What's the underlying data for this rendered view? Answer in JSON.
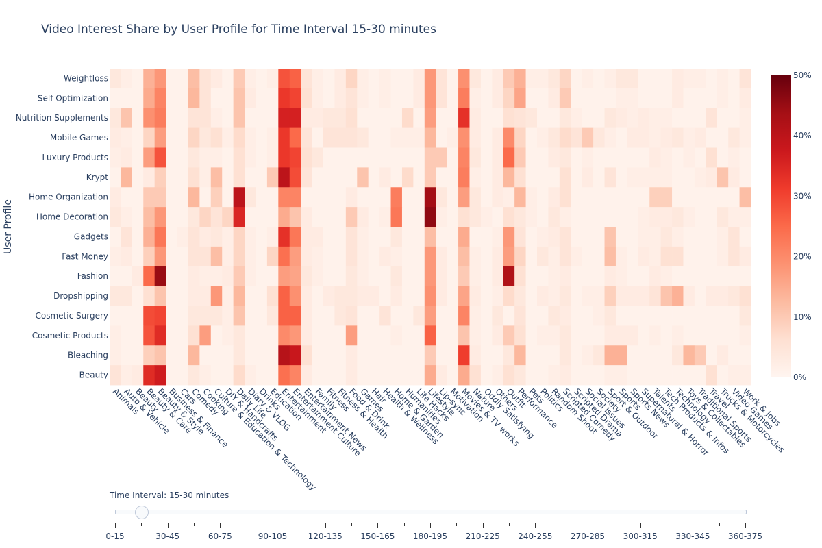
{
  "chart_data": {
    "type": "heatmap",
    "title": "Video Interest Share by User Profile for Time Interval 15-30 minutes",
    "xlabel": "",
    "ylabel": "User Profile",
    "colorscale": "Reds",
    "zrange": [
      0,
      50
    ],
    "colorbar": {
      "ticks": [
        "0%",
        "10%",
        "20%",
        "30%",
        "40%",
        "50%"
      ],
      "tickvals": [
        0,
        10,
        20,
        30,
        40,
        50
      ]
    },
    "x": [
      "Animals",
      "Auto & Vehicle",
      "Beauty",
      "Beauty & Care",
      "Beauty & Style",
      "Business & Finance",
      "Cars",
      "Comedy",
      "Cooking",
      "Culture & Education & Technology",
      "DIY & Handcrafts",
      "Daily Life",
      "Diary & VLOG",
      "Drinks",
      "Education",
      "Entertainment",
      "Entertainment Culture",
      "Entertainment News",
      "Family",
      "Fitness",
      "Fitness & Health",
      "Food & Drink",
      "Games",
      "Hair",
      "Health & Wellness",
      "Home & Garden",
      "Humanities",
      "Life Hacks",
      "Lifestyle",
      "Lip-sync",
      "Motivation",
      "Movies & TV works",
      "Nature",
      "Oddly Satisfying",
      "Others",
      "Outfit",
      "Performance",
      "Pets",
      "Politics",
      "Random Shoot",
      "Scripted Comedy",
      "Scripted Drama",
      "Social Issues",
      "Society",
      "Sport & Outdoor",
      "Sports",
      "Sports News",
      "Supernatural & Horror",
      "Talents",
      "Tech Products & Infos",
      "Technology",
      "Toys & Collectables",
      "Traditional Sports",
      "Travel",
      "Trucks & Motorcycles",
      "Video Games",
      "Work & Jobs"
    ],
    "y": [
      "Weightloss",
      "Self Optimization",
      "Nutrition Supplements",
      "Mobile Games",
      "Luxury Products",
      "Krypt",
      "Home Organization",
      "Home Decoration",
      "Gadgets",
      "Fast Money",
      "Fashion",
      "Dropshipping",
      "Cosmetic Surgery",
      "Cosmetic Products",
      "Bleaching",
      "Beauty"
    ],
    "z": [
      [
        4,
        2,
        1,
        14,
        18,
        1,
        1,
        12,
        5,
        3,
        1,
        10,
        2,
        1,
        2,
        28,
        26,
        5,
        2,
        1,
        3,
        8,
        2,
        1,
        2,
        1,
        1,
        3,
        18,
        5,
        1,
        19,
        4,
        1,
        3,
        10,
        14,
        2,
        2,
        4,
        8,
        1,
        2,
        1,
        2,
        4,
        4,
        1,
        1,
        1,
        3,
        2,
        2,
        1,
        2,
        1,
        5
      ],
      [
        1,
        1,
        1,
        15,
        21,
        1,
        1,
        13,
        5,
        1,
        1,
        11,
        3,
        1,
        1,
        32,
        30,
        6,
        2,
        1,
        3,
        5,
        2,
        1,
        2,
        1,
        1,
        3,
        18,
        5,
        1,
        22,
        2,
        1,
        3,
        8,
        16,
        1,
        1,
        3,
        10,
        1,
        1,
        1,
        1,
        2,
        2,
        1,
        1,
        1,
        3,
        1,
        1,
        1,
        2,
        1,
        3
      ],
      [
        4,
        11,
        1,
        19,
        22,
        1,
        1,
        5,
        5,
        2,
        1,
        11,
        1,
        1,
        1,
        36,
        36,
        3,
        3,
        4,
        4,
        6,
        1,
        1,
        1,
        1,
        7,
        1,
        17,
        1,
        1,
        33,
        3,
        1,
        1,
        6,
        5,
        4,
        1,
        1,
        4,
        2,
        1,
        1,
        4,
        3,
        2,
        3,
        2,
        2,
        1,
        1,
        1,
        5,
        1,
        1,
        2
      ],
      [
        3,
        2,
        1,
        8,
        17,
        1,
        1,
        8,
        4,
        6,
        2,
        7,
        2,
        1,
        2,
        32,
        25,
        5,
        1,
        5,
        5,
        5,
        4,
        1,
        1,
        2,
        2,
        2,
        13,
        1,
        2,
        19,
        3,
        1,
        3,
        20,
        8,
        1,
        2,
        4,
        7,
        5,
        10,
        4,
        2,
        1,
        3,
        3,
        2,
        3,
        4,
        2,
        3,
        1,
        1,
        4,
        2
      ],
      [
        2,
        3,
        1,
        17,
        28,
        1,
        1,
        4,
        2,
        2,
        1,
        6,
        2,
        1,
        2,
        32,
        30,
        6,
        4,
        1,
        1,
        1,
        1,
        1,
        1,
        1,
        1,
        1,
        10,
        10,
        1,
        21,
        4,
        1,
        3,
        25,
        10,
        1,
        1,
        3,
        4,
        1,
        2,
        1,
        1,
        1,
        1,
        1,
        3,
        2,
        1,
        2,
        1,
        6,
        1,
        2,
        1
      ],
      [
        1,
        13,
        1,
        3,
        9,
        1,
        1,
        6,
        2,
        12,
        1,
        6,
        1,
        1,
        10,
        40,
        29,
        5,
        1,
        1,
        1,
        1,
        11,
        1,
        3,
        1,
        7,
        1,
        10,
        1,
        1,
        22,
        2,
        1,
        3,
        13,
        6,
        1,
        1,
        1,
        6,
        1,
        3,
        1,
        5,
        1,
        2,
        2,
        2,
        2,
        1,
        1,
        2,
        3,
        11,
        3,
        1
      ],
      [
        3,
        1,
        1,
        10,
        10,
        1,
        1,
        13,
        1,
        9,
        1,
        40,
        4,
        1,
        1,
        21,
        21,
        1,
        1,
        1,
        1,
        3,
        1,
        1,
        1,
        22,
        1,
        1,
        44,
        4,
        1,
        17,
        4,
        1,
        3,
        2,
        13,
        2,
        1,
        3,
        6,
        1,
        1,
        1,
        1,
        1,
        1,
        1,
        9,
        9,
        1,
        1,
        1,
        1,
        1,
        1,
        12
      ],
      [
        4,
        2,
        1,
        12,
        18,
        1,
        1,
        4,
        8,
        5,
        8,
        35,
        1,
        1,
        1,
        15,
        11,
        3,
        1,
        1,
        1,
        10,
        3,
        1,
        2,
        23,
        1,
        1,
        46,
        2,
        1,
        6,
        4,
        2,
        1,
        6,
        4,
        2,
        1,
        4,
        2,
        1,
        1,
        1,
        1,
        1,
        1,
        2,
        3,
        3,
        4,
        2,
        1,
        1,
        4,
        2,
        2
      ],
      [
        1,
        5,
        1,
        14,
        23,
        1,
        2,
        5,
        3,
        4,
        2,
        8,
        2,
        1,
        2,
        33,
        23,
        3,
        3,
        1,
        1,
        5,
        2,
        1,
        1,
        4,
        1,
        1,
        12,
        1,
        1,
        15,
        1,
        1,
        2,
        18,
        5,
        1,
        2,
        3,
        5,
        1,
        1,
        1,
        11,
        1,
        1,
        2,
        2,
        4,
        2,
        1,
        1,
        1,
        2,
        5,
        1
      ],
      [
        2,
        3,
        1,
        9,
        18,
        1,
        1,
        5,
        5,
        12,
        2,
        8,
        2,
        1,
        8,
        24,
        17,
        3,
        2,
        1,
        1,
        5,
        2,
        1,
        3,
        2,
        1,
        1,
        18,
        3,
        1,
        12,
        2,
        1,
        3,
        17,
        8,
        1,
        4,
        2,
        5,
        2,
        1,
        1,
        12,
        2,
        1,
        3,
        2,
        6,
        6,
        1,
        1,
        1,
        2,
        5,
        3
      ],
      [
        1,
        1,
        3,
        25,
        45,
        1,
        1,
        3,
        2,
        2,
        3,
        10,
        2,
        1,
        1,
        17,
        16,
        4,
        2,
        1,
        1,
        4,
        2,
        1,
        1,
        4,
        1,
        1,
        18,
        3,
        1,
        10,
        2,
        1,
        3,
        42,
        6,
        1,
        1,
        2,
        3,
        1,
        1,
        1,
        3,
        2,
        1,
        1,
        3,
        2,
        1,
        1,
        1,
        1,
        1,
        1,
        1
      ],
      [
        4,
        4,
        1,
        6,
        11,
        1,
        1,
        3,
        3,
        18,
        2,
        13,
        1,
        1,
        6,
        26,
        19,
        3,
        1,
        3,
        4,
        4,
        3,
        3,
        1,
        3,
        1,
        1,
        19,
        3,
        1,
        16,
        3,
        1,
        2,
        7,
        4,
        1,
        3,
        2,
        4,
        1,
        2,
        2,
        9,
        3,
        3,
        3,
        5,
        11,
        14,
        3,
        1,
        3,
        3,
        4,
        6
      ],
      [
        1,
        1,
        1,
        29,
        30,
        1,
        1,
        4,
        4,
        4,
        2,
        11,
        1,
        1,
        4,
        26,
        26,
        3,
        1,
        1,
        4,
        5,
        1,
        1,
        5,
        1,
        1,
        4,
        17,
        1,
        1,
        21,
        2,
        1,
        4,
        1,
        5,
        1,
        1,
        4,
        3,
        1,
        1,
        2,
        4,
        1,
        1,
        1,
        1,
        1,
        1,
        1,
        1,
        1,
        1,
        1,
        4
      ],
      [
        2,
        1,
        1,
        28,
        34,
        1,
        1,
        6,
        17,
        1,
        2,
        4,
        1,
        1,
        1,
        20,
        18,
        3,
        1,
        1,
        1,
        17,
        1,
        1,
        1,
        2,
        1,
        1,
        26,
        1,
        1,
        11,
        2,
        1,
        3,
        10,
        6,
        1,
        2,
        2,
        4,
        1,
        1,
        1,
        3,
        3,
        3,
        1,
        2,
        1,
        2,
        1,
        1,
        1,
        1,
        1,
        2
      ],
      [
        2,
        1,
        1,
        9,
        11,
        1,
        1,
        13,
        1,
        1,
        1,
        4,
        1,
        1,
        1,
        41,
        38,
        6,
        1,
        1,
        1,
        3,
        1,
        1,
        1,
        1,
        1,
        1,
        10,
        1,
        1,
        31,
        3,
        1,
        1,
        4,
        13,
        1,
        1,
        1,
        4,
        1,
        2,
        4,
        14,
        14,
        1,
        1,
        1,
        1,
        4,
        13,
        10,
        1,
        3,
        1,
        1
      ],
      [
        5,
        2,
        3,
        34,
        37,
        1,
        1,
        4,
        2,
        1,
        1,
        7,
        2,
        1,
        1,
        24,
        21,
        3,
        1,
        1,
        1,
        3,
        1,
        1,
        1,
        1,
        1,
        1,
        15,
        3,
        1,
        15,
        6,
        1,
        2,
        6,
        4,
        1,
        1,
        2,
        3,
        1,
        1,
        1,
        2,
        2,
        1,
        1,
        1,
        1,
        1,
        1,
        1,
        6,
        1,
        2,
        2
      ]
    ]
  },
  "slider": {
    "label": "Time Interval: 15-30 minutes",
    "steps": [
      "0-15",
      "15-30",
      "30-45",
      "45-60",
      "60-75",
      "75-90",
      "90-105",
      "105-120",
      "120-135",
      "135-150",
      "150-165",
      "165-180",
      "180-195",
      "195-210",
      "210-225",
      "225-240",
      "240-255",
      "255-270",
      "270-285",
      "285-300",
      "300-315",
      "315-330",
      "330-345",
      "345-360",
      "360-375"
    ],
    "labeled_steps": [
      "0-15",
      "30-45",
      "60-75",
      "90-105",
      "120-135",
      "150-165",
      "180-195",
      "210-225",
      "240-255",
      "270-285",
      "300-315",
      "330-345",
      "360-375"
    ],
    "active_index": 1
  }
}
